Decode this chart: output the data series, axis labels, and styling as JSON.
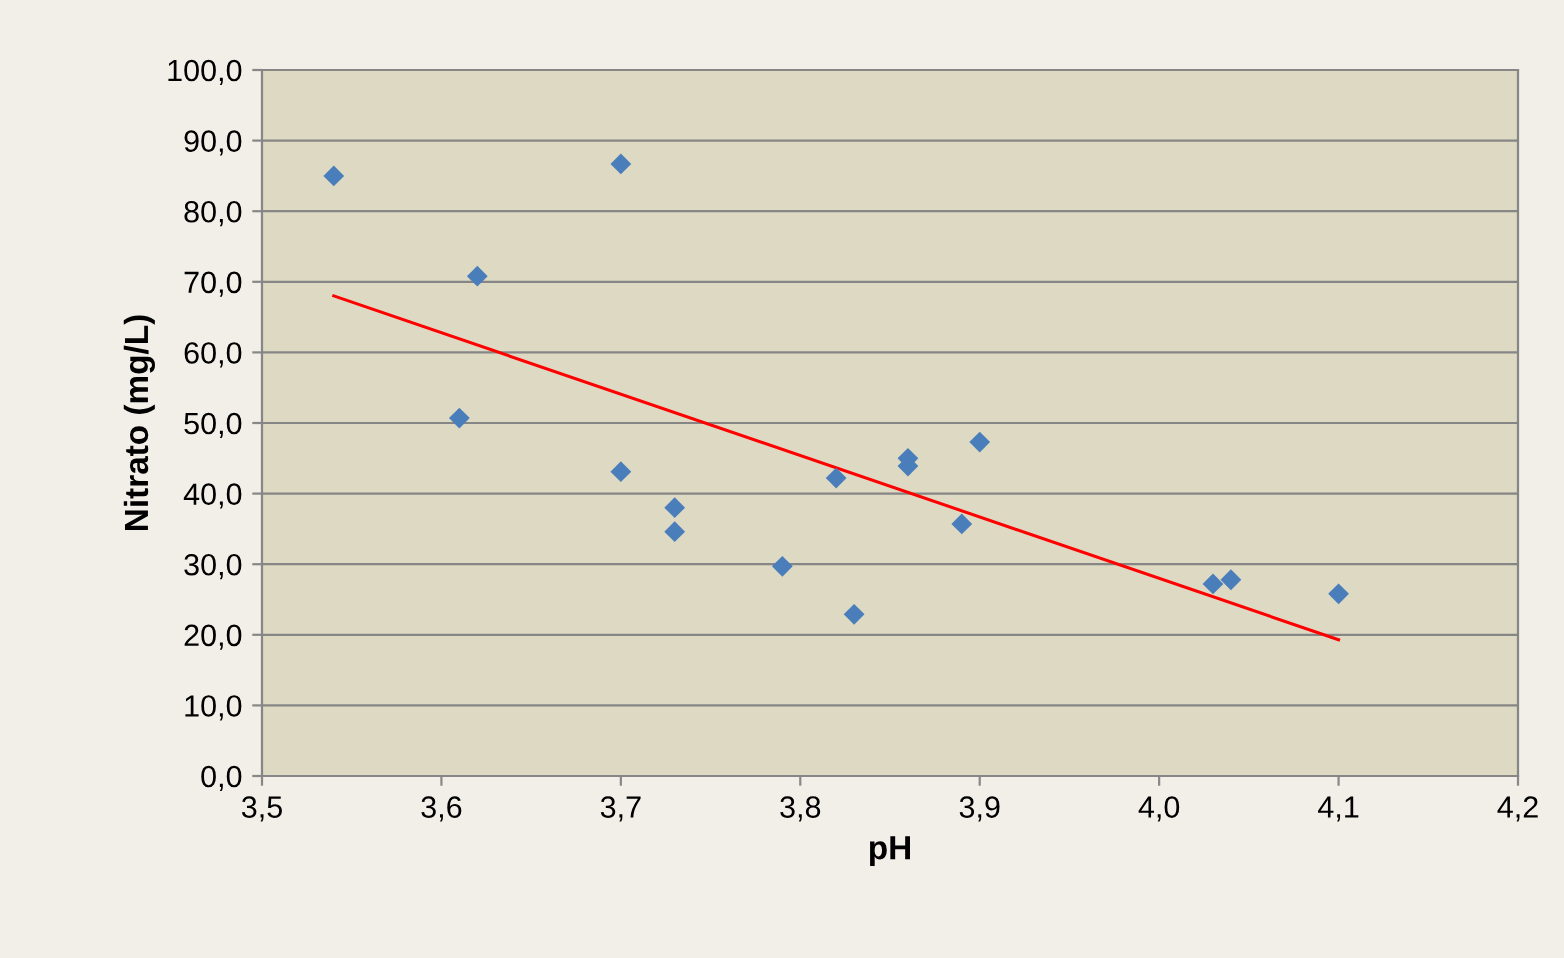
{
  "chart_data": {
    "type": "scatter",
    "xlabel": "pH",
    "ylabel": "Nitrato (mg/L)",
    "xlim": [
      3.5,
      4.2
    ],
    "ylim": [
      0,
      100
    ],
    "xticks": [
      {
        "value": 3.5,
        "label": "3,5"
      },
      {
        "value": 3.6,
        "label": "3,6"
      },
      {
        "value": 3.7,
        "label": "3,7"
      },
      {
        "value": 3.8,
        "label": "3,8"
      },
      {
        "value": 3.9,
        "label": "3,9"
      },
      {
        "value": 4.0,
        "label": "4,0"
      },
      {
        "value": 4.1,
        "label": "4,1"
      },
      {
        "value": 4.2,
        "label": "4,2"
      }
    ],
    "yticks": [
      {
        "value": 0,
        "label": "0,0"
      },
      {
        "value": 10,
        "label": "10,0"
      },
      {
        "value": 20,
        "label": "20,0"
      },
      {
        "value": 30,
        "label": "30,0"
      },
      {
        "value": 40,
        "label": "40,0"
      },
      {
        "value": 50,
        "label": "50,0"
      },
      {
        "value": 60,
        "label": "60,0"
      },
      {
        "value": 70,
        "label": "70,0"
      },
      {
        "value": 80,
        "label": "80,0"
      },
      {
        "value": 90,
        "label": "90,0"
      },
      {
        "value": 100,
        "label": "100,0"
      }
    ],
    "grid": "y",
    "legend": false,
    "series": [
      {
        "marker": "diamond",
        "color": "#4a7ebb",
        "x": [
          3.54,
          3.7,
          3.62,
          3.61,
          3.7,
          3.73,
          3.73,
          3.79,
          3.82,
          3.83,
          3.86,
          3.86,
          3.89,
          3.9,
          4.03,
          4.04,
          4.1
        ],
        "values": [
          85.0,
          86.7,
          70.8,
          50.7,
          43.1,
          38.0,
          34.6,
          29.7,
          42.2,
          22.9,
          45.0,
          43.9,
          35.7,
          47.3,
          27.2,
          27.8,
          25.8
        ]
      },
      {
        "type": "line",
        "marker": "none",
        "line_style": "solid",
        "color": "#ff0000",
        "x": [
          3.54,
          4.1
        ],
        "values": [
          68.0,
          19.3
        ]
      }
    ]
  }
}
